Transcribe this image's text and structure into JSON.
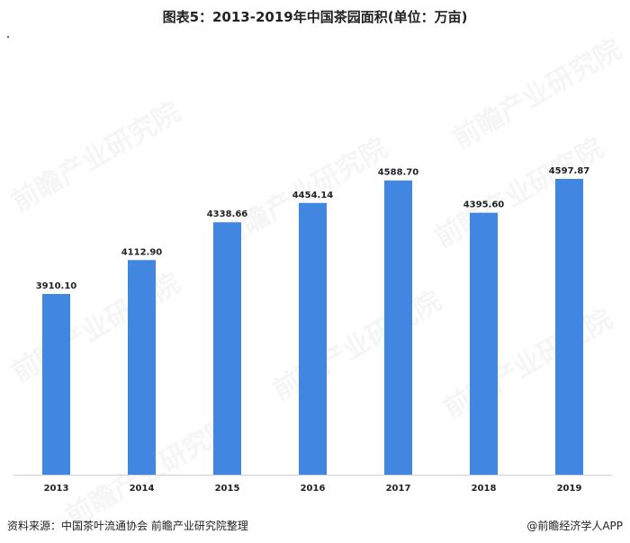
{
  "page": {
    "title": "图表5：2013-2019年中国茶园面积(单位：万亩)",
    "source": "资料来源：中国茶叶流通协会 前瞻产业研究院整理",
    "brand": "@前瞻经济学人APP",
    "watermark_text": "前瞻产业研究院"
  },
  "chart_data": {
    "type": "bar",
    "title": "图表5：2013-2019年中国茶园面积(单位：万亩)",
    "xlabel": "",
    "ylabel": "",
    "categories": [
      "2013",
      "2014",
      "2015",
      "2016",
      "2017",
      "2018",
      "2019"
    ],
    "values": [
      3910.1,
      4112.9,
      4338.66,
      4454.14,
      4588.7,
      4395.6,
      4597.87
    ],
    "value_labels": [
      "3910.10",
      "4112.90",
      "4338.66",
      "4454.14",
      "4588.70",
      "4395.60",
      "4597.87"
    ],
    "ylim": [
      2830,
      4700
    ],
    "grid": false,
    "legend": "none",
    "bar_color": "#4186e0"
  }
}
